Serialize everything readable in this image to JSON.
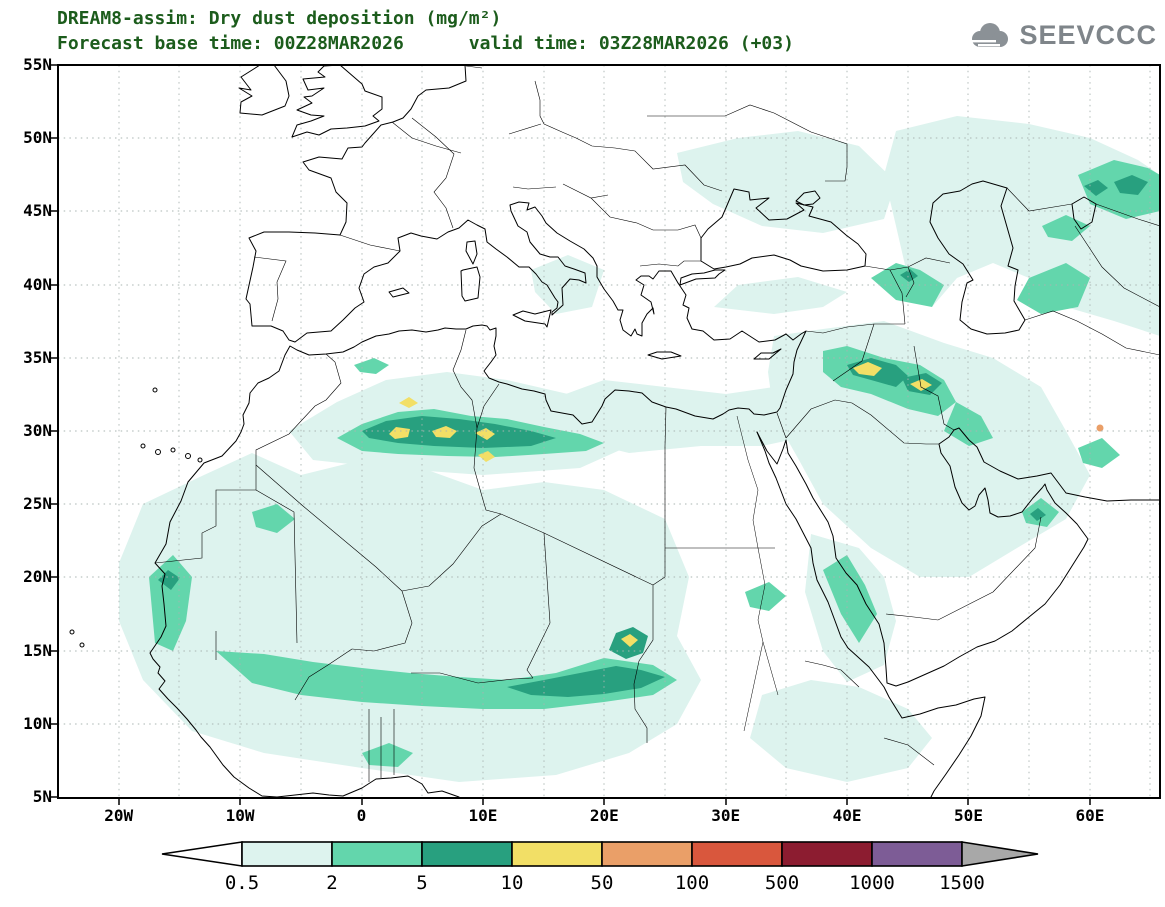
{
  "header": {
    "title_line1": "DREAM8-assim: Dry dust deposition (mg/m²)",
    "title_line2": "Forecast base time: 00Z28MAR2026      valid time: 03Z28MAR2026 (+03)",
    "title_color": "#1c5c1c",
    "logo_text": "SEEVCCC"
  },
  "map": {
    "lat_ticks": [
      {
        "label": "55N",
        "deg": 55
      },
      {
        "label": "50N",
        "deg": 50
      },
      {
        "label": "45N",
        "deg": 45
      },
      {
        "label": "40N",
        "deg": 40
      },
      {
        "label": "35N",
        "deg": 35
      },
      {
        "label": "30N",
        "deg": 30
      },
      {
        "label": "25N",
        "deg": 25
      },
      {
        "label": "20N",
        "deg": 20
      },
      {
        "label": "15N",
        "deg": 15
      },
      {
        "label": "10N",
        "deg": 10
      },
      {
        "label": "5N",
        "deg": 5
      }
    ],
    "lon_ticks": [
      {
        "label": "20W",
        "deg": -20
      },
      {
        "label": "10W",
        "deg": -10
      },
      {
        "label": "0",
        "deg": 0
      },
      {
        "label": "10E",
        "deg": 10
      },
      {
        "label": "20E",
        "deg": 20
      },
      {
        "label": "30E",
        "deg": 30
      },
      {
        "label": "40E",
        "deg": 40
      },
      {
        "label": "50E",
        "deg": 50
      },
      {
        "label": "60E",
        "deg": 60
      }
    ]
  },
  "colorbar": {
    "levels": [
      0.5,
      2,
      5,
      10,
      50,
      100,
      500,
      1000,
      1500
    ],
    "boundary_labels": [
      "0.5",
      "2",
      "5",
      "10",
      "50",
      "100",
      "500",
      "1000",
      "1500"
    ],
    "segment_colors": [
      "#ffffff",
      "#ddf3ee",
      "#63d6ac",
      "#28a07f",
      "#f2df66",
      "#ea9f68",
      "#d9573d",
      "#8c1c30",
      "#7d5c96",
      "#a8a8a8"
    ]
  },
  "palette": {
    "shade_0p5_2": "#ddf3ee",
    "shade_2_5": "#63d6ac",
    "shade_5_10": "#28a07f",
    "shade_10_50": "#f2df66",
    "shade_50_100": "#ea9f68"
  }
}
